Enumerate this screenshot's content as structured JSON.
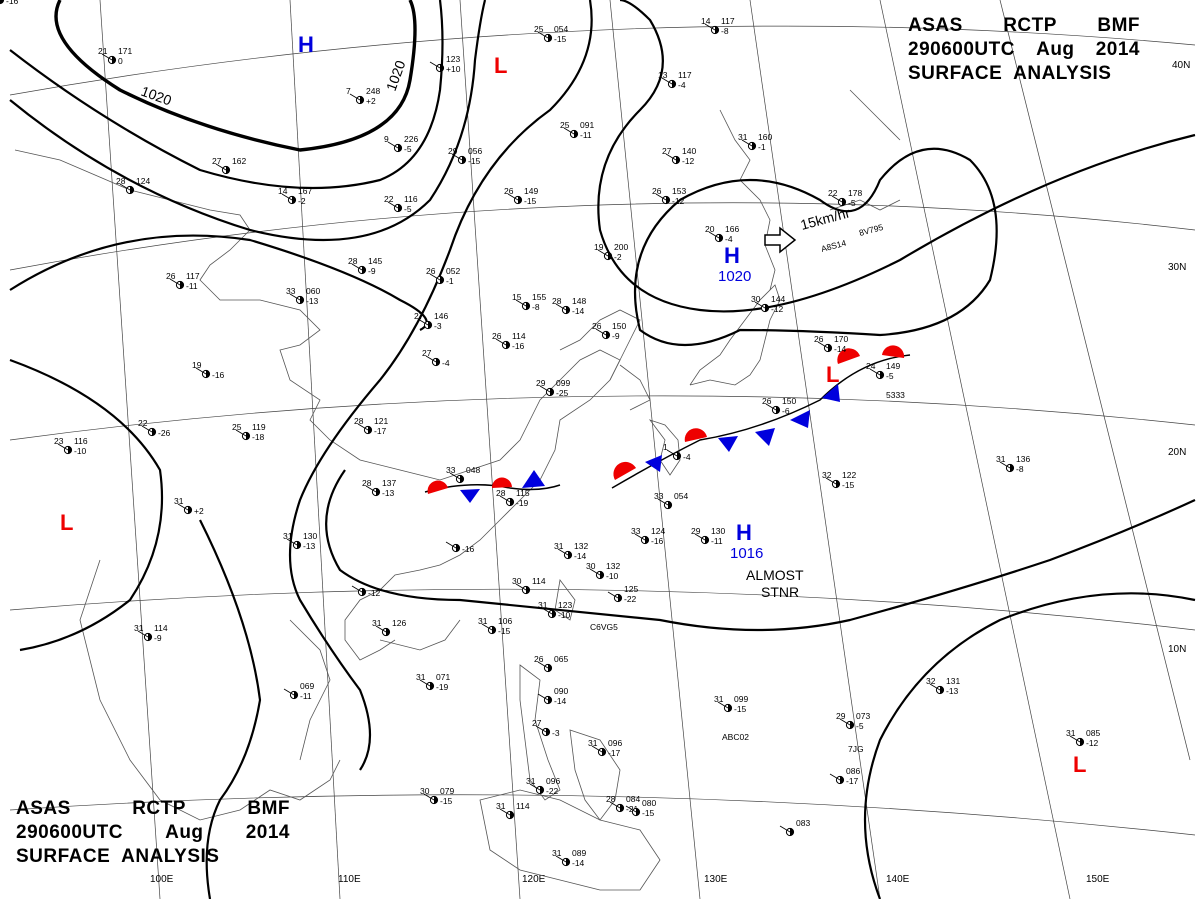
{
  "title": {
    "agency": "ASAS",
    "center": "RCTP",
    "source": "BMF",
    "time": "290600UTC",
    "month": "Aug",
    "year": "2014",
    "product": "SURFACE  ANALYSIS"
  },
  "grid_labels": {
    "lon": [
      "100E",
      "110E",
      "120E",
      "130E",
      "140E",
      "150E"
    ],
    "lat": [
      "40N",
      "30N",
      "20N",
      "10N"
    ]
  },
  "isobar_labels": [
    "1020",
    "1020"
  ],
  "pressure_systems": [
    {
      "id": "H1",
      "type": "H",
      "value": ""
    },
    {
      "id": "L1",
      "type": "L",
      "value": ""
    },
    {
      "id": "H2",
      "type": "H",
      "value": "1020"
    },
    {
      "id": "L2",
      "type": "L",
      "value": ""
    },
    {
      "id": "H3",
      "type": "H",
      "value": "1016"
    },
    {
      "id": "L3",
      "type": "L",
      "value": ""
    },
    {
      "id": "L4",
      "type": "L",
      "value": ""
    }
  ],
  "annotations": {
    "motion": "15km/hr",
    "almost": "ALMOST",
    "stnr": "STNR"
  },
  "colors": {
    "high": "#0000dd",
    "low": "#ee0000",
    "warm_front": "#ee0000",
    "cold_front": "#0000dd"
  },
  "stations": [
    {
      "t": "25",
      "p": "054",
      "w": "-15"
    },
    {
      "t": "14",
      "p": "117",
      "w": "-8"
    },
    {
      "t": "21",
      "p": "171",
      "w": "0"
    },
    {
      "t": "7",
      "p": "248",
      "w": "+2"
    },
    {
      "t": "9",
      "p": "226",
      "w": "-5"
    },
    {
      "t": "",
      "p": "123",
      "w": "+10"
    },
    {
      "t": "13",
      "p": "117",
      "w": "-4"
    },
    {
      "t": "25",
      "p": "091",
      "w": "-11"
    },
    {
      "t": "29",
      "p": "056",
      "w": "-15"
    },
    {
      "t": "27",
      "p": "140",
      "w": "-12"
    },
    {
      "t": "31",
      "p": "160",
      "w": "-1"
    },
    {
      "t": "27",
      "p": "162",
      "w": ""
    },
    {
      "t": "28",
      "p": "124",
      "w": ""
    },
    {
      "t": "14",
      "p": "167",
      "w": "-2"
    },
    {
      "t": "22",
      "p": "116",
      "w": "-5"
    },
    {
      "t": "26",
      "p": "149",
      "w": "-15"
    },
    {
      "t": "26",
      "p": "153",
      "w": "-12"
    },
    {
      "t": "20",
      "p": "166",
      "w": "-4"
    },
    {
      "t": "22",
      "p": "178",
      "w": "-5"
    },
    {
      "t": "19",
      "p": "200",
      "w": "-2"
    },
    {
      "t": "28",
      "p": "145",
      "w": "-9"
    },
    {
      "t": "26",
      "p": "052",
      "w": "-1"
    },
    {
      "t": "26",
      "p": "117",
      "w": "-11"
    },
    {
      "t": "33",
      "p": "060",
      "w": "-13"
    },
    {
      "t": "15",
      "p": "155",
      "w": "-8"
    },
    {
      "t": "28",
      "p": "148",
      "w": "-14"
    },
    {
      "t": "30",
      "p": "144",
      "w": "-12"
    },
    {
      "t": "27",
      "p": "146",
      "w": "-3"
    },
    {
      "t": "26",
      "p": "114",
      "w": "-16"
    },
    {
      "t": "26",
      "p": "150",
      "w": "-9"
    },
    {
      "t": "26",
      "p": "170",
      "w": "-14"
    },
    {
      "t": "24",
      "p": "149",
      "w": "-5"
    },
    {
      "t": "27",
      "p": "",
      "w": "-4"
    },
    {
      "t": "28",
      "p": "121",
      "w": "-17"
    },
    {
      "t": "29",
      "p": "099",
      "w": "-25"
    },
    {
      "t": "26",
      "p": "150",
      "w": "-6"
    },
    {
      "t": "25",
      "p": "119",
      "w": "-18"
    },
    {
      "t": "22",
      "p": "",
      "w": "-26"
    },
    {
      "t": "19",
      "p": "",
      "w": "-16"
    },
    {
      "t": "1",
      "p": "",
      "w": "-4"
    },
    {
      "t": "23",
      "p": "116",
      "w": "-10"
    },
    {
      "t": "33",
      "p": "048",
      "w": ""
    },
    {
      "t": "28",
      "p": "137",
      "w": "-13"
    },
    {
      "t": "28",
      "p": "115",
      "w": "-19"
    },
    {
      "t": "32",
      "p": "122",
      "w": "-15"
    },
    {
      "t": "31",
      "p": "136",
      "w": "-8"
    },
    {
      "t": "31",
      "p": "",
      "w": "+2"
    },
    {
      "t": "33",
      "p": "054",
      "w": ""
    },
    {
      "t": "31",
      "p": "130",
      "w": "-13"
    },
    {
      "t": "",
      "p": "",
      "w": "-16"
    },
    {
      "t": "33",
      "p": "124",
      "w": "-16"
    },
    {
      "t": "29",
      "p": "130",
      "w": "-11"
    },
    {
      "t": "31",
      "p": "132",
      "w": "-14"
    },
    {
      "t": "30",
      "p": "132",
      "w": "-10"
    },
    {
      "t": "",
      "p": "",
      "w": "-12"
    },
    {
      "t": "30",
      "p": "114",
      "w": ""
    },
    {
      "t": "31",
      "p": "123",
      "w": "-10"
    },
    {
      "t": "",
      "p": "125",
      "w": "-22"
    },
    {
      "t": "31",
      "p": "126",
      "w": ""
    },
    {
      "t": "31",
      "p": "106",
      "w": "-15"
    },
    {
      "t": "31",
      "p": "114",
      "w": "-9"
    },
    {
      "t": "26",
      "p": "065",
      "w": ""
    },
    {
      "t": "",
      "p": "090",
      "w": "-14"
    },
    {
      "t": "",
      "p": "069",
      "w": "-11"
    },
    {
      "t": "31",
      "p": "071",
      "w": "-19"
    },
    {
      "t": "31",
      "p": "099",
      "w": "-15"
    },
    {
      "t": "32",
      "p": "131",
      "w": "-13"
    },
    {
      "t": "29",
      "p": "073",
      "w": "-5"
    },
    {
      "t": "31",
      "p": "085",
      "w": "-12"
    },
    {
      "t": "27",
      "p": "",
      "w": "-3"
    },
    {
      "t": "31",
      "p": "096",
      "w": "-17"
    },
    {
      "t": "",
      "p": "086",
      "w": "-17"
    },
    {
      "t": "30",
      "p": "079",
      "w": "-15"
    },
    {
      "t": "31",
      "p": "096",
      "w": "-22"
    },
    {
      "t": "31",
      "p": "114",
      "w": ""
    },
    {
      "t": "28",
      "p": "084",
      "w": "-21"
    },
    {
      "t": "",
      "p": "080",
      "w": "-15"
    },
    {
      "t": "",
      "p": "083",
      "w": ""
    },
    {
      "t": "31",
      "p": "089",
      "w": "-14"
    },
    {
      "t": "28",
      "p": "094",
      "w": "-16"
    }
  ],
  "ship_ids": [
    "A8S14",
    "8V795",
    "C6VG5",
    "ABC02",
    "7JG",
    "5333"
  ]
}
